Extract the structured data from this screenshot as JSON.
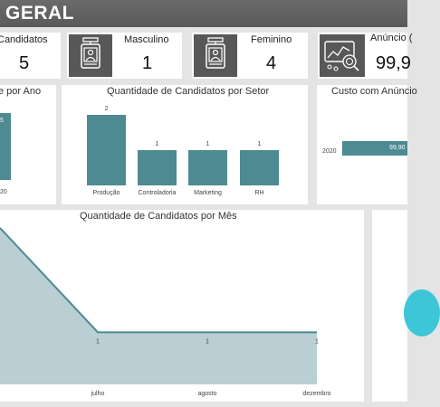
{
  "header": {
    "title": "GERAL"
  },
  "kpis": {
    "candidatos": {
      "label": "Candidatos",
      "value": "5"
    },
    "masculino": {
      "label": "Masculino",
      "value": "1",
      "icon": "id-badge-icon"
    },
    "feminino": {
      "label": "Feminino",
      "value": "4",
      "icon": "id-badge-icon"
    },
    "anuncio": {
      "label": "Anúncio (",
      "value": "99,9",
      "icon": "analytics-icon"
    }
  },
  "por_ano": {
    "title": "e por Ano",
    "x_label": "20",
    "bar_label": "5"
  },
  "por_setor": {
    "title": "Quantidade de Candidatos por Setor",
    "chart_data": {
      "type": "bar",
      "categories": [
        "Produção",
        "Controladoria",
        "Marketing",
        "RH"
      ],
      "values": [
        2,
        1,
        1,
        1
      ],
      "ylim": [
        0,
        2
      ]
    },
    "value_labels": [
      "2",
      "1",
      "1",
      "1"
    ]
  },
  "custo_anuncio": {
    "title": "Custo com Anúncio",
    "chart_data": {
      "type": "bar",
      "orientation": "horizontal",
      "categories": [
        "2020"
      ],
      "values": [
        99.9
      ]
    },
    "value_label": "99,90"
  },
  "por_mes": {
    "title": "Quantidade de Candidatos por Mês",
    "chart_data": {
      "type": "area",
      "categories": [
        "",
        "julho",
        "agosto",
        "dezembro"
      ],
      "values": [
        3,
        1,
        1,
        1
      ],
      "ylim": [
        0,
        3
      ]
    },
    "point_labels": [
      "1",
      "1",
      "1"
    ]
  },
  "colors": {
    "bar": "#4e8a91",
    "bar_dark": "#3d6f75",
    "area_fill": "#b9cfd3",
    "area_line": "#4e8a91",
    "donut": "#3dc6d8",
    "header": "#5e5e5e"
  }
}
